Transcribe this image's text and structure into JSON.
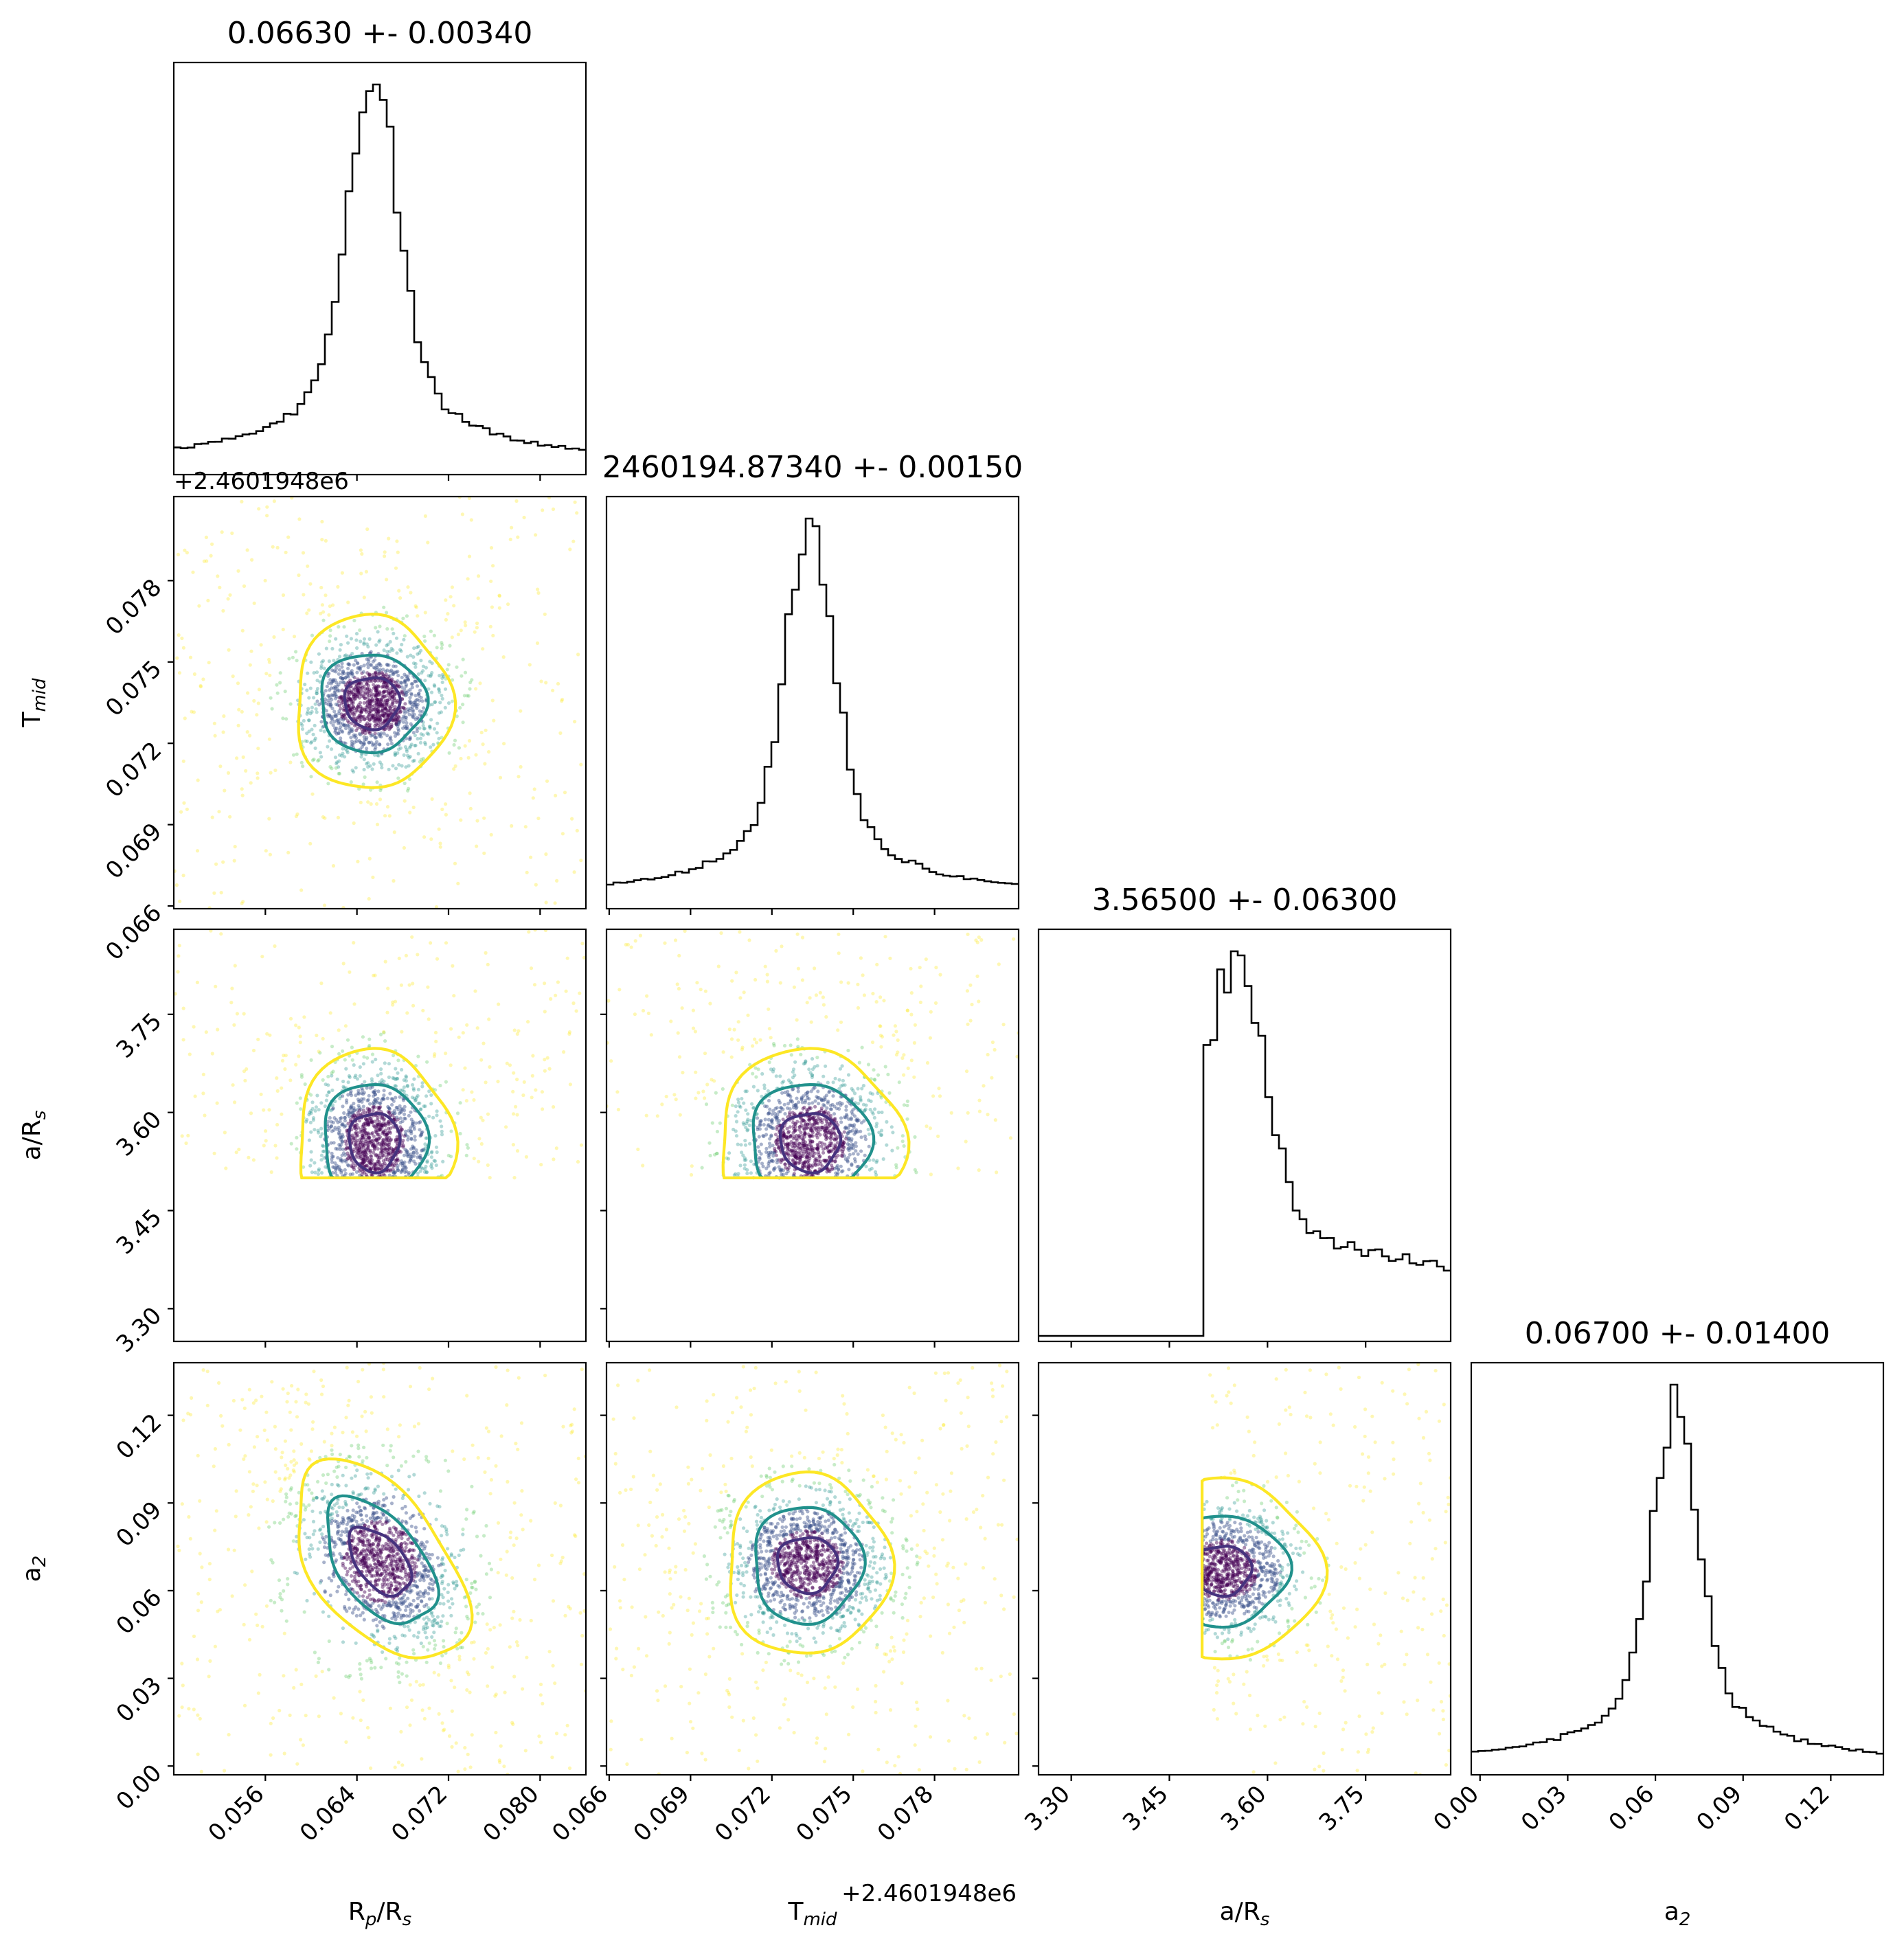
{
  "chart_data": {
    "type": "corner",
    "parameters": [
      {
        "key": "rp",
        "label": "R_p/R_s",
        "label_main": "R",
        "label_sub": "p",
        "label_rest": "/R",
        "label_sub2": "s",
        "range": [
          0.048,
          0.084
        ],
        "ticks": [
          "0.056",
          "0.064",
          "0.072",
          "0.080"
        ],
        "tick_values": [
          0.056,
          0.064,
          0.072,
          0.08
        ],
        "title": "0.06630 +- 0.00340",
        "mean": 0.0663,
        "std": 0.0034
      },
      {
        "key": "tmid",
        "label": "T_mid",
        "label_main": "T",
        "label_sub": "mid",
        "range": [
          0.0659,
          0.0811
        ],
        "ticks": [
          "0.066",
          "0.069",
          "0.072",
          "0.075",
          "0.078"
        ],
        "tick_values": [
          0.066,
          0.069,
          0.072,
          0.075,
          0.078
        ],
        "title": "2460194.87340 +- 0.00150",
        "offset": "+2.4601948e6",
        "mean": 0.0734,
        "std": 0.0015
      },
      {
        "key": "ars",
        "label": "a/R_s",
        "label_main": "a/R",
        "label_sub": "s",
        "range": [
          3.25,
          3.88
        ],
        "ticks": [
          "3.30",
          "3.45",
          "3.60",
          "3.75"
        ],
        "tick_values": [
          3.3,
          3.45,
          3.6,
          3.75
        ],
        "title": "3.56500 +- 0.06300",
        "mean": 3.565,
        "std": 0.063
      },
      {
        "key": "a2",
        "label": "a_2",
        "label_main": "a",
        "label_sub": "2",
        "range": [
          -0.003,
          0.138
        ],
        "ticks": [
          "0.00",
          "0.03",
          "0.06",
          "0.09",
          "0.12"
        ],
        "tick_values": [
          0.0,
          0.03,
          0.06,
          0.09,
          0.12
        ],
        "title": "0.06700 +- 0.01400",
        "mean": 0.067,
        "std": 0.014
      }
    ],
    "histograms": {
      "rp": {
        "peak": 0.0654,
        "core_sigma": 0.0021,
        "core_frac": 0.74,
        "floor": 0.02
      },
      "tmid": {
        "peak": 0.0734,
        "core_sigma": 0.00085,
        "core_frac": 0.74,
        "floor": 0.02
      },
      "ars": {
        "peak": 3.55,
        "core_sigma": 0.045,
        "core_frac": 0.62,
        "floor": 0.0,
        "lower_cutoff": 3.5
      },
      "a2": {
        "peak": 0.067,
        "core_sigma": 0.0075,
        "core_frac": 0.74,
        "floor": 0.02
      }
    },
    "contours": [
      {
        "x": "tmid",
        "y": "rp",
        "center": [
          0.0653,
          0.0735
        ],
        "levels": [
          [
            0.0024,
            0.00095
          ],
          [
            0.0046,
            0.0018
          ],
          [
            0.0068,
            0.0032
          ]
        ]
      },
      {
        "x": "ars",
        "y": "rp",
        "center": [
          0.0655,
          3.555
        ],
        "levels": [
          [
            0.0022,
            0.045
          ],
          [
            0.0045,
            0.09
          ],
          [
            0.0068,
            0.14
          ]
        ],
        "clip_min_y": 3.5
      },
      {
        "x": "ars",
        "y": "tmid",
        "center": [
          0.0734,
          3.555
        ],
        "levels": [
          [
            0.0011,
            0.045
          ],
          [
            0.0022,
            0.09
          ],
          [
            0.0034,
            0.14
          ]
        ],
        "clip_min_y": 3.5
      },
      {
        "x": "a2",
        "y": "rp",
        "center": [
          0.066,
          0.07
        ],
        "rho": -0.5,
        "levels": [
          [
            0.0027,
            0.0115
          ],
          [
            0.0048,
            0.0215
          ],
          [
            0.0075,
            0.034
          ]
        ]
      },
      {
        "x": "a2",
        "y": "tmid",
        "center": [
          0.0733,
          0.069
        ],
        "levels": [
          [
            0.0011,
            0.0095
          ],
          [
            0.002,
            0.02
          ],
          [
            0.003,
            0.031
          ]
        ]
      },
      {
        "x": "a2",
        "y": "ars",
        "center": [
          3.53,
          0.067
        ],
        "levels": [
          [
            0.045,
            0.0085
          ],
          [
            0.1,
            0.019
          ],
          [
            0.15,
            0.031
          ]
        ],
        "clip_min_x": 3.5
      }
    ],
    "contour_colors": [
      "#46327e",
      "#21918c",
      "#fde725"
    ],
    "point_colors": [
      "#440154",
      "#3b528b",
      "#21918c",
      "#5ec962",
      "#fde725"
    ]
  }
}
